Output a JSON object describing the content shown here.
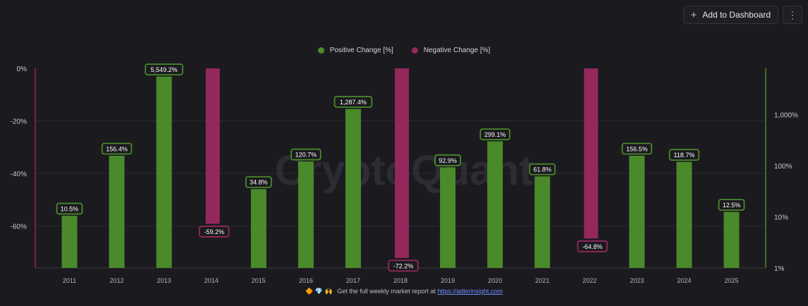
{
  "toolbar": {
    "add_label": "Add to Dashboard",
    "plus_icon": "+",
    "more_icon": "⋮"
  },
  "watermark": "CryptoQuant",
  "footer": {
    "emoji": "🔶 💎 🙌",
    "text": "Get the full weekly market report at",
    "link": "https://adlerinsight.com"
  },
  "colors": {
    "positive": "#4a8a2a",
    "negative": "#94285c",
    "background": "#1a1a1f",
    "grid": "#2a2a30"
  },
  "chart_data": {
    "type": "bar",
    "categories": [
      "2011",
      "2012",
      "2013",
      "2014",
      "2015",
      "2016",
      "2017",
      "2018",
      "2019",
      "2020",
      "2021",
      "2022",
      "2023",
      "2024",
      "2025"
    ],
    "series": [
      {
        "name": "Positive Change [%]",
        "axis": "right-log",
        "values": [
          10.5,
          156.4,
          5549.2,
          null,
          34.8,
          120.7,
          1287.4,
          null,
          92.9,
          299.1,
          61.8,
          null,
          156.5,
          118.7,
          12.5
        ],
        "labels": [
          "10.5%",
          "156.4%",
          "5,549.2%",
          "",
          "34.8%",
          "120.7%",
          "1,287.4%",
          "",
          "92.9%",
          "299.1%",
          "61.8%",
          "",
          "156.5%",
          "118.7%",
          "12.5%"
        ]
      },
      {
        "name": "Negative Change [%]",
        "axis": "left",
        "values": [
          null,
          null,
          null,
          -59.2,
          null,
          null,
          null,
          -72.2,
          null,
          null,
          null,
          -64.8,
          null,
          null,
          null
        ],
        "labels": [
          "",
          "",
          "",
          "-59.2%",
          "",
          "",
          "",
          "-72.2%",
          "",
          "",
          "",
          "-64.8%",
          "",
          "",
          ""
        ]
      }
    ],
    "left_axis": {
      "ticks": [
        0,
        -20,
        -40,
        -60
      ],
      "tick_labels": [
        "0%",
        "-20%",
        "-40%",
        "-60%"
      ],
      "ylim": [
        -76,
        0
      ]
    },
    "right_axis": {
      "scale": "log",
      "ticks": [
        1,
        10,
        100,
        1000
      ],
      "tick_labels": [
        "1%",
        "10%",
        "100%",
        "1,000%"
      ],
      "ylim": [
        1,
        8000
      ]
    },
    "legend": "top-center",
    "grid": true
  }
}
